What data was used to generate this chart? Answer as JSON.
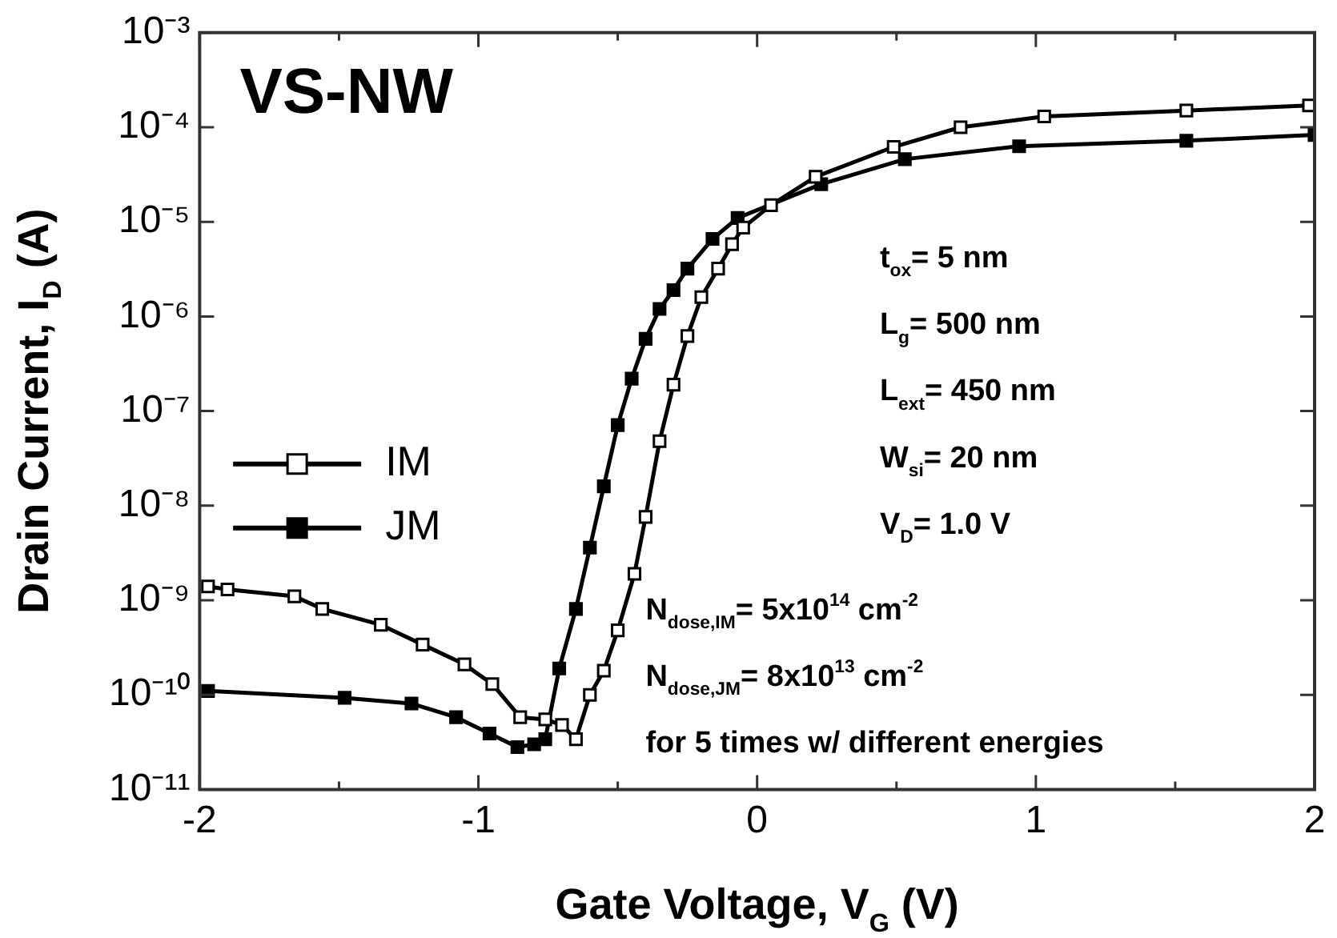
{
  "chart_data": {
    "type": "line",
    "title": "VS-NW",
    "xlabel": "Gate Voltage, V$_{G}$ (V)",
    "ylabel": "Drain Current, I$_{D}$ (A)",
    "log": "y",
    "xlim": [
      -2,
      2
    ],
    "xticks": [
      -2,
      {
        "value": -1.5,
        "label": null
      },
      -1,
      {
        "value": -0.5,
        "label": null
      },
      0,
      {
        "value": 0.5,
        "label": null
      },
      1,
      {
        "value": 1.5,
        "label": null
      },
      2
    ],
    "ylim": [
      1e-11,
      0.001
    ],
    "yticks": [
      {
        "value": 1e-11,
        "label": "10⁻¹¹"
      },
      {
        "value": 1e-10,
        "label": "10⁻¹⁰"
      },
      {
        "value": 1e-09,
        "label": "10⁻⁹"
      },
      {
        "value": 1e-08,
        "label": "10⁻⁸"
      },
      {
        "value": 1e-07,
        "label": "10⁻⁷"
      },
      {
        "value": 1e-06,
        "label": "10⁻⁶"
      },
      {
        "value": 1e-05,
        "label": "10⁻⁵"
      },
      {
        "value": 0.0001,
        "label": "10⁻⁴"
      },
      {
        "value": 0.001,
        "label": "10⁻³"
      }
    ],
    "grid": false,
    "legend": "left",
    "marker": "square",
    "line_style": "solid",
    "series": [
      {
        "name": "IM",
        "color": "#000000",
        "x": [
          -1.97,
          -1.9,
          -1.66,
          -1.56,
          -1.35,
          -1.2,
          -1.05,
          -0.95,
          -0.85,
          -0.76,
          -0.7,
          -0.65,
          -0.6,
          -0.55,
          -0.5,
          -0.44,
          -0.4,
          -0.35,
          -0.3,
          -0.25,
          -0.2,
          -0.14,
          -0.09,
          -0.05,
          0.05,
          0.21,
          0.49,
          0.73,
          1.03,
          1.54,
          1.98
        ],
        "values": [
          1.4e-09,
          1.3e-09,
          1.1e-09,
          8.1e-10,
          5.5e-10,
          3.4e-10,
          2.1e-10,
          1.3e-10,
          5.8e-11,
          5.5e-11,
          4.8e-11,
          3.4e-11,
          1e-10,
          1.8e-10,
          4.8e-10,
          1.9e-09,
          7.6e-09,
          4.8e-08,
          1.9e-07,
          6.2e-07,
          1.6e-06,
          3.2e-06,
          5.8e-06,
          8.7e-06,
          1.5e-05,
          3e-05,
          6.2e-05,
          0.0001,
          0.00013,
          0.00015,
          0.00017
        ]
      },
      {
        "name": "JM",
        "color": "#000000",
        "x": [
          -1.97,
          -1.48,
          -1.24,
          -1.08,
          -0.96,
          -0.86,
          -0.8,
          -0.76,
          -0.71,
          -0.65,
          -0.6,
          -0.55,
          -0.5,
          -0.45,
          -0.4,
          -0.35,
          -0.3,
          -0.25,
          -0.16,
          -0.07,
          0.23,
          0.53,
          0.94,
          1.54,
          2.0
        ],
        "values": [
          1.1e-10,
          9.3e-11,
          8.1e-11,
          5.8e-11,
          3.9e-11,
          2.8e-11,
          3e-11,
          3.4e-11,
          1.9e-10,
          8.1e-10,
          3.6e-09,
          1.6e-08,
          7.1e-08,
          2.2e-07,
          5.8e-07,
          1.2e-06,
          1.9e-06,
          3.2e-06,
          6.6e-06,
          1.1e-05,
          2.5e-05,
          4.6e-05,
          6.3e-05,
          7.2e-05,
          8.3e-05
        ]
      }
    ],
    "annotations": [
      "t$_{ox}$= 5 nm",
      "L$_{g}$= 500 nm",
      "L$_{ext}$= 450 nm",
      "W$_{si}$= 20 nm",
      "V$_{D}$= 1.0 V",
      "N$_{dose,IM}$= 5x10$^{14}$ cm$^{-2}$",
      "N$_{dose,JM}$= 8x10$^{13}$ cm$^{-2}$",
      "for 5 times w/ different energies"
    ]
  }
}
